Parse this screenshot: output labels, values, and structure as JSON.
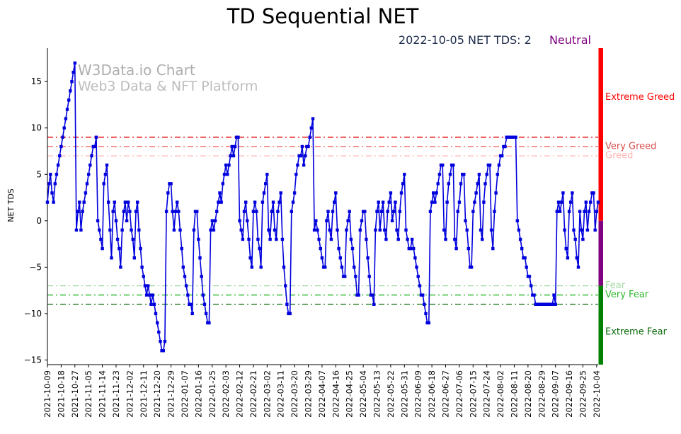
{
  "header": {
    "title": "TD Sequential NET",
    "subtitle_status": "2022-10-05 NET TDS: 2",
    "subtitle_sentiment": "Neutral",
    "status_color": "#1c2b4a",
    "sentiment_color": "#800080"
  },
  "watermark": {
    "line1": "W3Data.io Chart",
    "line2": "Web3 Data & NFT Platform"
  },
  "chart_data": {
    "type": "line",
    "title": "TD Sequential NET",
    "xlabel": "",
    "ylabel": "NET TDS",
    "ylim": [
      -15.5,
      18.6
    ],
    "yticks": [
      -15,
      -10,
      -5,
      0,
      5,
      10,
      15
    ],
    "grid": false,
    "line_color": "#0000dd",
    "marker": "square",
    "start_date": "2021-10-09",
    "end_date": "2022-10-05",
    "x_tick_interval_days": 9,
    "x_tick_labels": [
      "2021-10-09",
      "2021-10-18",
      "2021-10-27",
      "2021-11-05",
      "2021-11-14",
      "2021-11-23",
      "2021-12-02",
      "2021-12-11",
      "2021-12-20",
      "2021-12-29",
      "2022-01-07",
      "2022-01-16",
      "2022-01-25",
      "2022-02-03",
      "2022-02-12",
      "2022-02-21",
      "2022-03-02",
      "2022-03-11",
      "2022-03-20",
      "2022-03-29",
      "2022-04-07",
      "2022-04-16",
      "2022-04-25",
      "2022-05-04",
      "2022-05-13",
      "2022-05-22",
      "2022-05-31",
      "2022-06-09",
      "2022-06-18",
      "2022-06-27",
      "2022-07-06",
      "2022-07-15",
      "2022-07-24",
      "2022-08-02",
      "2022-08-11",
      "2022-08-20",
      "2022-08-29",
      "2022-09-07",
      "2022-09-16",
      "2022-09-25",
      "2022-10-04"
    ],
    "values": [
      2,
      4,
      5,
      3,
      2,
      4,
      5,
      6,
      7,
      8,
      9,
      10,
      11,
      12,
      13,
      14,
      15,
      16,
      17,
      -1,
      1,
      2,
      -1,
      1,
      2,
      3,
      4,
      5,
      6,
      7,
      8,
      8,
      9,
      0,
      -1,
      -2,
      -3,
      4,
      5,
      6,
      2,
      -1,
      -4,
      1,
      2,
      0,
      -2,
      -3,
      -5,
      -1,
      1,
      2,
      0,
      2,
      1,
      -1,
      -2,
      -4,
      1,
      2,
      -1,
      -3,
      -5,
      -6,
      -7,
      -8,
      -7,
      -8,
      -9,
      -8,
      -9,
      -10,
      -11,
      -12,
      -13,
      -14,
      -14,
      -13,
      1,
      3,
      4,
      4,
      1,
      -1,
      1,
      2,
      1,
      -1,
      -3,
      -5,
      -6,
      -7,
      -8,
      -9,
      -9,
      -10,
      -1,
      1,
      1,
      -2,
      -4,
      -6,
      -8,
      -9,
      -10,
      -11,
      -11,
      -1,
      0,
      -1,
      0,
      1,
      2,
      3,
      2,
      4,
      5,
      6,
      5,
      6,
      7,
      8,
      7,
      8,
      9,
      9,
      0,
      -1,
      -2,
      1,
      2,
      0,
      -2,
      -4,
      -5,
      1,
      2,
      1,
      -2,
      -3,
      -5,
      2,
      3,
      4,
      5,
      -1,
      -2,
      1,
      2,
      -1,
      -2,
      1,
      2,
      3,
      -2,
      -5,
      -7,
      -9,
      -10,
      -10,
      1,
      2,
      3,
      5,
      6,
      7,
      7,
      8,
      6,
      7,
      8,
      8,
      9,
      10,
      11,
      -1,
      0,
      -1,
      -2,
      -3,
      -4,
      -5,
      -5,
      0,
      1,
      -1,
      -2,
      1,
      2,
      3,
      -1,
      -3,
      -4,
      -5,
      -6,
      -6,
      -1,
      0,
      1,
      -2,
      -3,
      -5,
      -6,
      -8,
      -8,
      -1,
      0,
      1,
      1,
      -2,
      -4,
      -6,
      -8,
      -8,
      -9,
      -1,
      1,
      2,
      -1,
      1,
      2,
      -1,
      -2,
      1,
      2,
      3,
      0,
      1,
      2,
      -1,
      -2,
      1,
      3,
      4,
      5,
      -1,
      -2,
      -3,
      -3,
      -2,
      -3,
      -4,
      -5,
      -6,
      -7,
      -8,
      -8,
      -9,
      -10,
      -11,
      -11,
      1,
      2,
      3,
      2,
      3,
      4,
      5,
      6,
      6,
      -1,
      -2,
      2,
      4,
      5,
      6,
      6,
      -2,
      -3,
      1,
      2,
      4,
      5,
      5,
      0,
      -1,
      -3,
      -5,
      -5,
      1,
      2,
      3,
      4,
      5,
      -1,
      -2,
      2,
      4,
      5,
      6,
      6,
      -1,
      -3,
      1,
      3,
      5,
      6,
      7,
      7,
      8,
      8,
      9,
      9,
      9,
      9,
      9,
      9,
      9,
      0,
      -1,
      -2,
      -3,
      -4,
      -4,
      -5,
      -6,
      -6,
      -7,
      -8,
      -8,
      -9,
      -9,
      -9,
      -9,
      -9,
      -9,
      -9,
      -9,
      -9,
      -9,
      -9,
      -9,
      -8,
      -9,
      1,
      2,
      1,
      2,
      3,
      -1,
      -3,
      -4,
      1,
      2,
      3,
      -1,
      -2,
      -4,
      -5,
      1,
      -1,
      -2,
      1,
      2,
      -1,
      1,
      2,
      3,
      3,
      -1,
      1,
      2
    ],
    "thresholds": [
      {
        "value": 9,
        "color": "#e60000"
      },
      {
        "value": 8,
        "color": "#ee5555"
      },
      {
        "value": 7,
        "color": "#ffb3b3"
      },
      {
        "value": -7,
        "color": "#a6d9a6"
      },
      {
        "value": -8,
        "color": "#2eb82e"
      },
      {
        "value": -9,
        "color": "#1b7a1b"
      }
    ],
    "zone_labels": [
      {
        "text": "Extreme Greed",
        "value": 13.3,
        "color": "#ff0000"
      },
      {
        "text": "Very Greed",
        "value": 8,
        "color": "#d94f4f"
      },
      {
        "text": "Greed",
        "value": 7,
        "color": "#ffb3b3"
      },
      {
        "text": "Fear",
        "value": -7,
        "color": "#a6d9a6"
      },
      {
        "text": "Very Fear",
        "value": -8,
        "color": "#2eb82e"
      },
      {
        "text": "Extreme Fear",
        "value": -12,
        "color": "#0b6b0b"
      }
    ],
    "right_bar": [
      {
        "from": 18.6,
        "to": 0,
        "color": "#ff0000"
      },
      {
        "from": 0,
        "to": -7,
        "color": "#800080"
      },
      {
        "from": -7,
        "to": -15.5,
        "color": "#008000"
      }
    ],
    "legend": "none"
  }
}
